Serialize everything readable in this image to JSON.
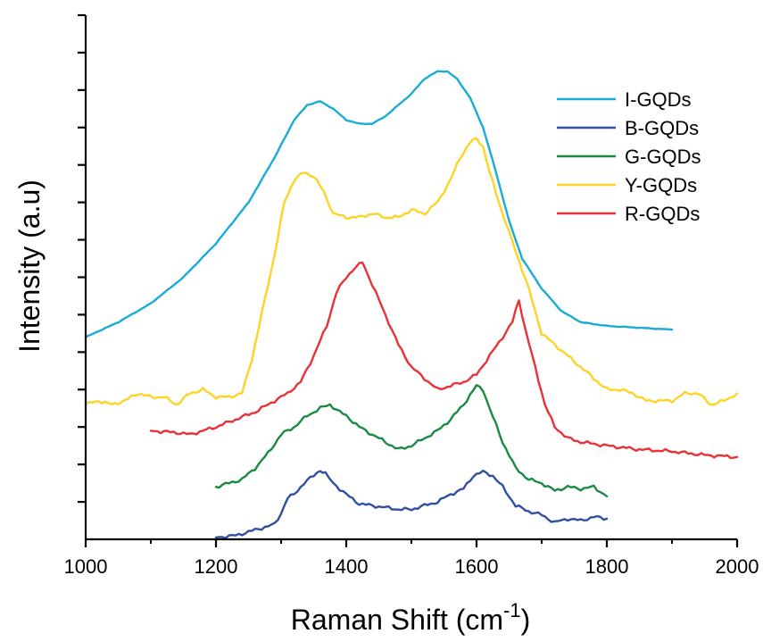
{
  "chart_data": {
    "type": "line",
    "xlabel": "Raman Shift (cm",
    "xlabel_superscript": "-1",
    "xlabel_suffix": ")",
    "ylabel": "Intensity (a.u)",
    "xlim": [
      1000,
      2000
    ],
    "ylim": [
      0,
      14
    ],
    "x_ticks": [
      "1000",
      "1200",
      "1400",
      "1600",
      "1800",
      "2000"
    ],
    "y_tick_labels_shown": false,
    "grid": false,
    "legend_position": "top-right",
    "series": [
      {
        "name": "I-GQDs",
        "color": "#1aabd6",
        "points": [
          [
            1000,
            5.4
          ],
          [
            1050,
            5.8
          ],
          [
            1100,
            6.3
          ],
          [
            1150,
            7.0
          ],
          [
            1200,
            7.9
          ],
          [
            1250,
            9.0
          ],
          [
            1290,
            10.2
          ],
          [
            1320,
            11.2
          ],
          [
            1340,
            11.6
          ],
          [
            1360,
            11.7
          ],
          [
            1380,
            11.5
          ],
          [
            1400,
            11.2
          ],
          [
            1420,
            11.1
          ],
          [
            1440,
            11.1
          ],
          [
            1460,
            11.3
          ],
          [
            1480,
            11.6
          ],
          [
            1500,
            11.9
          ],
          [
            1520,
            12.3
          ],
          [
            1540,
            12.5
          ],
          [
            1555,
            12.5
          ],
          [
            1570,
            12.3
          ],
          [
            1590,
            11.8
          ],
          [
            1610,
            11.0
          ],
          [
            1630,
            9.8
          ],
          [
            1650,
            8.5
          ],
          [
            1670,
            7.5
          ],
          [
            1700,
            6.7
          ],
          [
            1730,
            6.1
          ],
          [
            1760,
            5.8
          ],
          [
            1800,
            5.7
          ],
          [
            1850,
            5.65
          ],
          [
            1900,
            5.6
          ]
        ]
      },
      {
        "name": "B-GQDs",
        "color": "#2f4fa3",
        "points": [
          [
            1200,
            0.05
          ],
          [
            1230,
            0.1
          ],
          [
            1260,
            0.25
          ],
          [
            1290,
            0.4
          ],
          [
            1300,
            0.7
          ],
          [
            1310,
            1.1
          ],
          [
            1320,
            1.2
          ],
          [
            1335,
            1.5
          ],
          [
            1350,
            1.7
          ],
          [
            1360,
            1.85
          ],
          [
            1368,
            1.75
          ],
          [
            1380,
            1.5
          ],
          [
            1400,
            1.2
          ],
          [
            1420,
            0.95
          ],
          [
            1440,
            0.9
          ],
          [
            1460,
            0.85
          ],
          [
            1480,
            0.8
          ],
          [
            1500,
            0.8
          ],
          [
            1520,
            0.9
          ],
          [
            1540,
            1.0
          ],
          [
            1560,
            1.2
          ],
          [
            1580,
            1.35
          ],
          [
            1595,
            1.7
          ],
          [
            1610,
            1.8
          ],
          [
            1625,
            1.7
          ],
          [
            1640,
            1.4
          ],
          [
            1660,
            0.9
          ],
          [
            1680,
            0.75
          ],
          [
            1700,
            0.65
          ],
          [
            1720,
            0.45
          ],
          [
            1740,
            0.55
          ],
          [
            1760,
            0.5
          ],
          [
            1780,
            0.6
          ],
          [
            1800,
            0.55
          ]
        ]
      },
      {
        "name": "G-GQDs",
        "color": "#1a8a43",
        "points": [
          [
            1200,
            1.4
          ],
          [
            1220,
            1.5
          ],
          [
            1240,
            1.6
          ],
          [
            1260,
            1.9
          ],
          [
            1280,
            2.3
          ],
          [
            1300,
            2.8
          ],
          [
            1320,
            3.0
          ],
          [
            1340,
            3.3
          ],
          [
            1360,
            3.5
          ],
          [
            1375,
            3.6
          ],
          [
            1390,
            3.4
          ],
          [
            1400,
            3.3
          ],
          [
            1420,
            3.0
          ],
          [
            1440,
            2.8
          ],
          [
            1460,
            2.6
          ],
          [
            1480,
            2.4
          ],
          [
            1500,
            2.5
          ],
          [
            1520,
            2.7
          ],
          [
            1540,
            2.9
          ],
          [
            1560,
            3.2
          ],
          [
            1580,
            3.6
          ],
          [
            1600,
            4.1
          ],
          [
            1610,
            4.0
          ],
          [
            1620,
            3.5
          ],
          [
            1640,
            2.6
          ],
          [
            1660,
            1.9
          ],
          [
            1680,
            1.6
          ],
          [
            1700,
            1.5
          ],
          [
            1720,
            1.3
          ],
          [
            1740,
            1.4
          ],
          [
            1760,
            1.35
          ],
          [
            1780,
            1.4
          ],
          [
            1800,
            1.15
          ]
        ]
      },
      {
        "name": "Y-GQDs",
        "color": "#ffd325",
        "points": [
          [
            1000,
            3.6
          ],
          [
            1020,
            3.7
          ],
          [
            1040,
            3.6
          ],
          [
            1060,
            3.7
          ],
          [
            1080,
            3.9
          ],
          [
            1100,
            3.8
          ],
          [
            1120,
            3.8
          ],
          [
            1140,
            3.6
          ],
          [
            1160,
            3.9
          ],
          [
            1180,
            4.0
          ],
          [
            1200,
            3.8
          ],
          [
            1220,
            3.8
          ],
          [
            1240,
            3.9
          ],
          [
            1255,
            4.8
          ],
          [
            1270,
            6.0
          ],
          [
            1290,
            7.6
          ],
          [
            1305,
            9.0
          ],
          [
            1320,
            9.6
          ],
          [
            1335,
            9.8
          ],
          [
            1350,
            9.7
          ],
          [
            1365,
            9.3
          ],
          [
            1380,
            8.7
          ],
          [
            1400,
            8.6
          ],
          [
            1420,
            8.6
          ],
          [
            1440,
            8.7
          ],
          [
            1460,
            8.6
          ],
          [
            1480,
            8.6
          ],
          [
            1500,
            8.8
          ],
          [
            1520,
            8.7
          ],
          [
            1540,
            9.0
          ],
          [
            1560,
            9.6
          ],
          [
            1575,
            10.2
          ],
          [
            1590,
            10.6
          ],
          [
            1600,
            10.7
          ],
          [
            1610,
            10.5
          ],
          [
            1620,
            9.8
          ],
          [
            1640,
            8.7
          ],
          [
            1660,
            7.7
          ],
          [
            1680,
            6.7
          ],
          [
            1700,
            5.5
          ],
          [
            1720,
            5.2
          ],
          [
            1740,
            4.9
          ],
          [
            1760,
            4.6
          ],
          [
            1780,
            4.3
          ],
          [
            1800,
            4.0
          ],
          [
            1820,
            4.0
          ],
          [
            1840,
            3.9
          ],
          [
            1860,
            3.7
          ],
          [
            1880,
            3.7
          ],
          [
            1900,
            3.7
          ],
          [
            1920,
            3.9
          ],
          [
            1940,
            3.9
          ],
          [
            1960,
            3.6
          ],
          [
            1980,
            3.7
          ],
          [
            2000,
            3.9
          ]
        ]
      },
      {
        "name": "R-GQDs",
        "color": "#e93138",
        "points": [
          [
            1100,
            2.9
          ],
          [
            1140,
            2.85
          ],
          [
            1160,
            2.8
          ],
          [
            1180,
            2.9
          ],
          [
            1200,
            3.0
          ],
          [
            1230,
            3.2
          ],
          [
            1260,
            3.4
          ],
          [
            1290,
            3.7
          ],
          [
            1310,
            3.9
          ],
          [
            1330,
            4.2
          ],
          [
            1350,
            4.9
          ],
          [
            1370,
            5.7
          ],
          [
            1385,
            6.6
          ],
          [
            1400,
            7.0
          ],
          [
            1410,
            7.2
          ],
          [
            1425,
            7.4
          ],
          [
            1440,
            6.8
          ],
          [
            1460,
            6.0
          ],
          [
            1480,
            5.2
          ],
          [
            1500,
            4.6
          ],
          [
            1520,
            4.3
          ],
          [
            1540,
            4.0
          ],
          [
            1560,
            4.1
          ],
          [
            1580,
            4.2
          ],
          [
            1600,
            4.4
          ],
          [
            1620,
            4.9
          ],
          [
            1640,
            5.4
          ],
          [
            1655,
            5.8
          ],
          [
            1665,
            6.4
          ],
          [
            1675,
            5.6
          ],
          [
            1690,
            4.6
          ],
          [
            1705,
            3.6
          ],
          [
            1720,
            3.0
          ],
          [
            1740,
            2.7
          ],
          [
            1760,
            2.6
          ],
          [
            1800,
            2.5
          ],
          [
            1850,
            2.4
          ],
          [
            1900,
            2.35
          ],
          [
            1950,
            2.25
          ],
          [
            2000,
            2.2
          ]
        ]
      }
    ]
  }
}
